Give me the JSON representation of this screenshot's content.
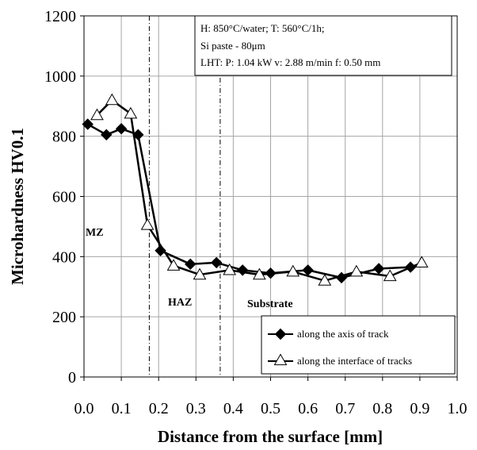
{
  "chart_data": {
    "type": "line",
    "title": "",
    "xlabel": "Distance from the surface [mm]",
    "ylabel": "Microhardness HV0.1",
    "xlim": [
      0.0,
      1.0
    ],
    "ylim": [
      0,
      1200
    ],
    "x_ticks": [
      "0.0",
      "0.1",
      "0.2",
      "0.3",
      "0.4",
      "0.5",
      "0.6",
      "0.7",
      "0.8",
      "0.9",
      "1.0"
    ],
    "y_ticks": [
      "0",
      "200",
      "400",
      "600",
      "800",
      "1000",
      "1200"
    ],
    "grid": true,
    "legend_position": "bottom-right",
    "series": [
      {
        "name": "along the axis of track",
        "marker": "filled-diamond",
        "color": "#000000",
        "x": [
          0.01,
          0.06,
          0.1,
          0.145,
          0.205,
          0.285,
          0.355,
          0.425,
          0.5,
          0.6,
          0.69,
          0.79,
          0.875
        ],
        "y": [
          840,
          805,
          825,
          805,
          420,
          375,
          380,
          355,
          345,
          355,
          330,
          360,
          365
        ]
      },
      {
        "name": "along the interface of tracks",
        "marker": "open-triangle",
        "color": "#000000",
        "x": [
          0.035,
          0.075,
          0.125,
          0.17,
          0.24,
          0.31,
          0.39,
          0.47,
          0.56,
          0.645,
          0.73,
          0.82,
          0.905
        ],
        "y": [
          870,
          920,
          875,
          505,
          370,
          340,
          355,
          340,
          350,
          320,
          350,
          335,
          380
        ]
      }
    ],
    "reference_lines_x": [
      0.175,
      0.365
    ],
    "annotations": [
      "MZ",
      "HAZ",
      "Substrate"
    ],
    "info_box": [
      "H: 850°C/water; T: 560°C/1h;",
      "Si paste - 80μm",
      "LHT:  P: 1.04 kW  v: 2.88 m/min  f: 0.50 mm"
    ]
  }
}
